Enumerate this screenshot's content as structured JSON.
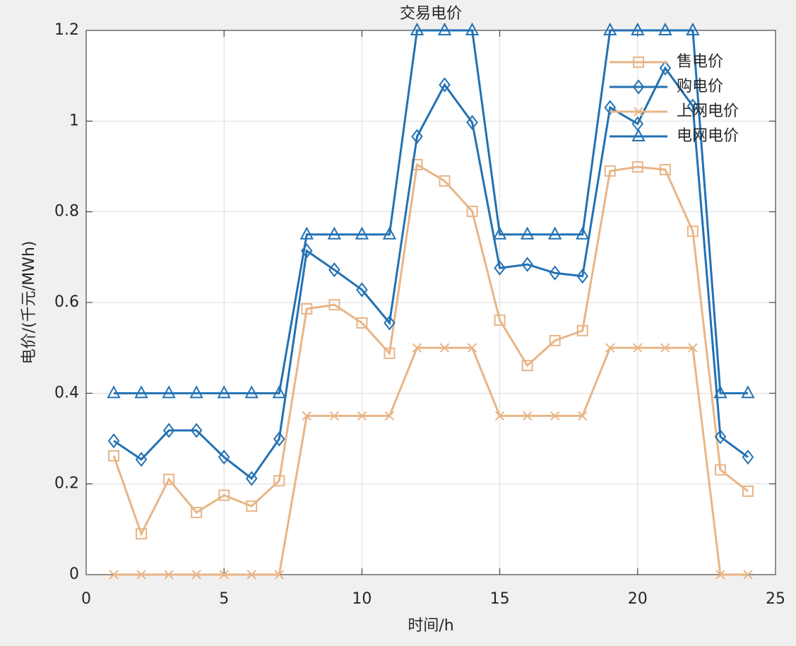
{
  "chart_data": {
    "type": "line",
    "title": "交易电价",
    "x_label": "时间/h",
    "y_label": "电价/(千元/MWh)",
    "x": [
      1,
      2,
      3,
      4,
      5,
      6,
      7,
      8,
      9,
      10,
      11,
      12,
      13,
      14,
      15,
      16,
      17,
      18,
      19,
      20,
      21,
      22,
      23,
      24
    ],
    "series": [
      {
        "name": "售电价",
        "color": "#e8b586",
        "marker": "square",
        "values": [
          0.262,
          0.09,
          0.21,
          0.137,
          0.175,
          0.151,
          0.207,
          0.586,
          0.595,
          0.555,
          0.488,
          0.904,
          0.868,
          0.801,
          0.561,
          0.461,
          0.516,
          0.538,
          0.89,
          0.899,
          0.893,
          0.757,
          0.231,
          0.184
        ]
      },
      {
        "name": "购电价",
        "color": "#2271b3",
        "marker": "diamond",
        "values": [
          0.295,
          0.254,
          0.318,
          0.318,
          0.259,
          0.212,
          0.299,
          0.714,
          0.672,
          0.628,
          0.555,
          0.966,
          1.08,
          0.997,
          0.676,
          0.684,
          0.665,
          0.658,
          1.03,
          0.994,
          1.117,
          1.033,
          0.304,
          0.259
        ]
      },
      {
        "name": "上网电价",
        "color": "#e8b586",
        "marker": "x",
        "values": [
          0,
          0,
          0,
          0,
          0,
          0,
          0,
          0.35,
          0.35,
          0.35,
          0.35,
          0.5,
          0.5,
          0.5,
          0.35,
          0.35,
          0.35,
          0.35,
          0.5,
          0.5,
          0.5,
          0.5,
          0,
          0
        ]
      },
      {
        "name": "电网电价",
        "color": "#2271b3",
        "marker": "triangle",
        "values": [
          0.4,
          0.4,
          0.4,
          0.4,
          0.4,
          0.4,
          0.4,
          0.75,
          0.75,
          0.75,
          0.75,
          1.2,
          1.2,
          1.2,
          0.75,
          0.75,
          0.75,
          0.75,
          1.2,
          1.2,
          1.2,
          1.2,
          0.4,
          0.4
        ]
      }
    ],
    "xlim": [
      0,
      25
    ],
    "xticks": [
      0,
      5,
      10,
      15,
      20,
      25
    ],
    "ylim": [
      0,
      1.2
    ],
    "yticks": [
      0,
      0.2,
      0.4,
      0.6,
      0.8,
      1,
      1.2
    ],
    "grid": true,
    "legend": "northeast"
  }
}
